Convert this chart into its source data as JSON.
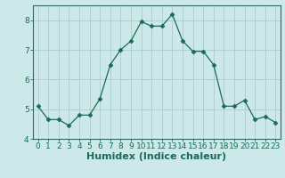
{
  "x": [
    0,
    1,
    2,
    3,
    4,
    5,
    6,
    7,
    8,
    9,
    10,
    11,
    12,
    13,
    14,
    15,
    16,
    17,
    18,
    19,
    20,
    21,
    22,
    23
  ],
  "y": [
    5.1,
    4.65,
    4.65,
    4.45,
    4.8,
    4.8,
    5.35,
    6.5,
    7.0,
    7.3,
    7.95,
    7.8,
    7.8,
    8.2,
    7.3,
    6.95,
    6.95,
    6.5,
    5.1,
    5.1,
    5.3,
    4.65,
    4.75,
    4.55
  ],
  "ylim": [
    4.0,
    8.5
  ],
  "yticks": [
    4,
    5,
    6,
    7,
    8
  ],
  "xticks": [
    0,
    1,
    2,
    3,
    4,
    5,
    6,
    7,
    8,
    9,
    10,
    11,
    12,
    13,
    14,
    15,
    16,
    17,
    18,
    19,
    20,
    21,
    22,
    23
  ],
  "xlabel": "Humidex (Indice chaleur)",
  "line_color": "#1a6b5a",
  "marker": "D",
  "marker_size": 2.5,
  "bg_color": "#cce8e8",
  "grid_color": "#aacccc",
  "tick_label_fontsize": 6.5,
  "xlabel_fontsize": 8,
  "spine_color": "#336666"
}
